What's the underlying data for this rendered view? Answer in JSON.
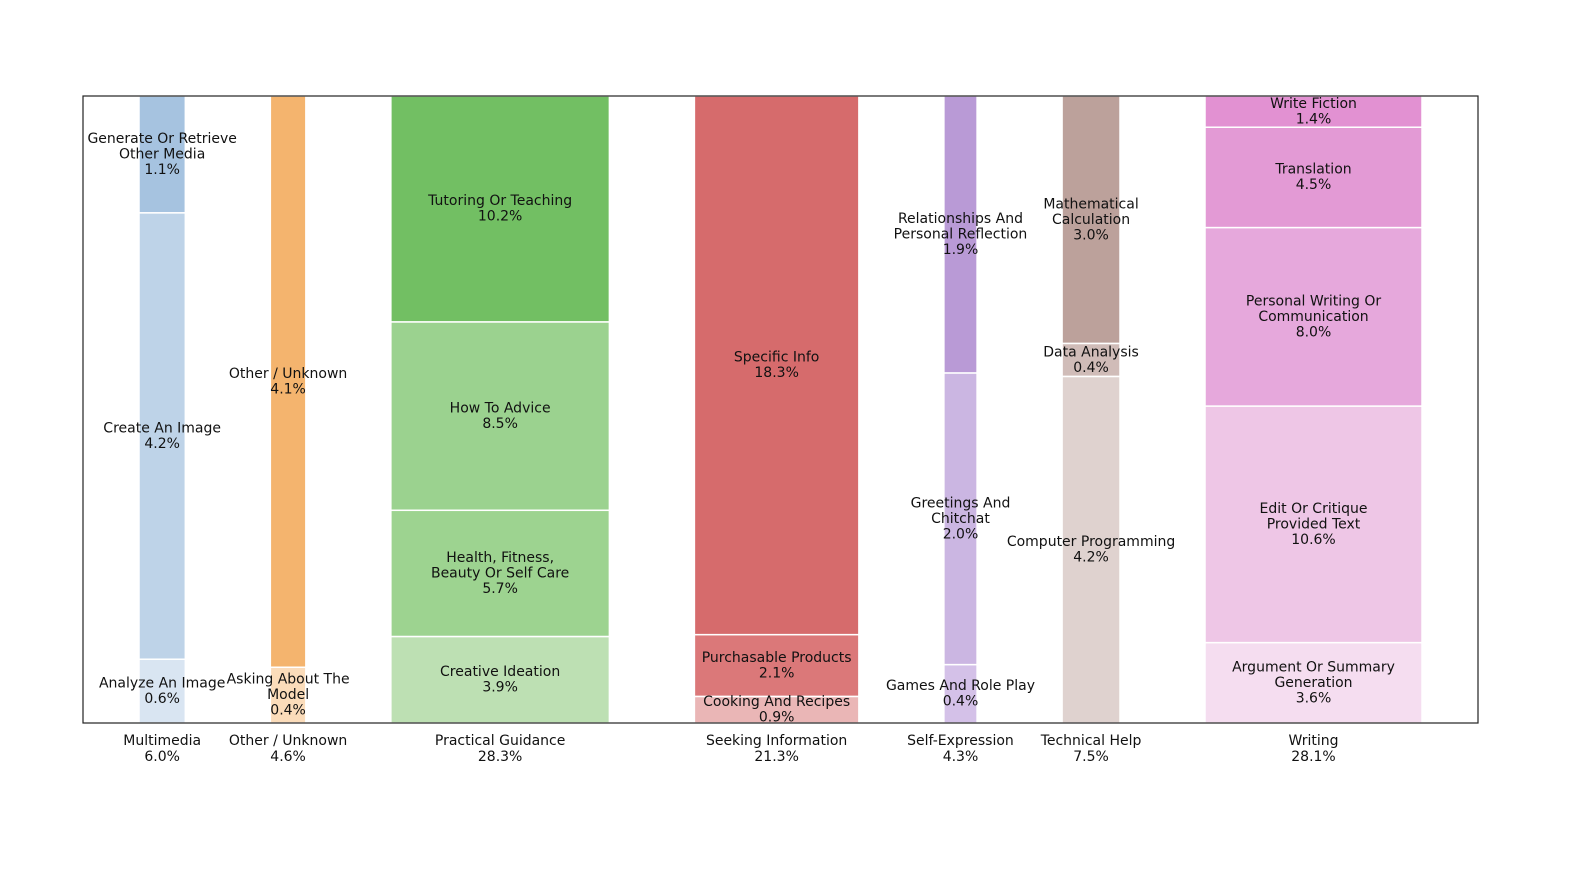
{
  "chart_data": {
    "type": "marimekko",
    "groups": [
      {
        "name": "Multimedia",
        "value": 6.0,
        "value_label": "6.0%",
        "segments": [
          {
            "name": "Generate Or Retrieve\nOther Media",
            "value": 1.1,
            "value_label": "1.1%",
            "color": "#a6c3e0"
          },
          {
            "name": "Create An Image",
            "value": 4.2,
            "value_label": "4.2%",
            "color": "#bed3e8"
          },
          {
            "name": "Analyze An Image",
            "value": 0.6,
            "value_label": "0.6%",
            "color": "#d9e5f2"
          }
        ]
      },
      {
        "name": "Other / Unknown",
        "value": 4.6,
        "value_label": "4.6%",
        "segments": [
          {
            "name": "Other / Unknown",
            "value": 4.1,
            "value_label": "4.1%",
            "color": "#f4b46e"
          },
          {
            "name": "Asking About The\nModel",
            "value": 0.4,
            "value_label": "0.4%",
            "color": "#fbdcba"
          }
        ]
      },
      {
        "name": "Practical Guidance",
        "value": 28.3,
        "value_label": "28.3%",
        "segments": [
          {
            "name": "Tutoring Or Teaching",
            "value": 10.2,
            "value_label": "10.2%",
            "color": "#72bf63"
          },
          {
            "name": "How To Advice",
            "value": 8.5,
            "value_label": "8.5%",
            "color": "#9bd28f"
          },
          {
            "name": "Health, Fitness,\nBeauty Or Self Care",
            "value": 5.7,
            "value_label": "5.7%",
            "color": "#9dd390"
          },
          {
            "name": "Creative Ideation",
            "value": 3.9,
            "value_label": "3.9%",
            "color": "#bde0b3"
          }
        ]
      },
      {
        "name": "Seeking Information",
        "value": 21.3,
        "value_label": "21.3%",
        "segments": [
          {
            "name": "Specific Info",
            "value": 18.3,
            "value_label": "18.3%",
            "color": "#d66b6c"
          },
          {
            "name": "Purchasable Products",
            "value": 2.1,
            "value_label": "2.1%",
            "color": "#db7879"
          },
          {
            "name": "Cooking And Recipes",
            "value": 0.9,
            "value_label": "0.9%",
            "color": "#eab6b6"
          }
        ]
      },
      {
        "name": "Self-Expression",
        "value": 4.3,
        "value_label": "4.3%",
        "segments": [
          {
            "name": "Relationships And\nPersonal Reflection",
            "value": 1.9,
            "value_label": "1.9%",
            "color": "#b99ad6"
          },
          {
            "name": "Greetings And\nChitchat",
            "value": 2.0,
            "value_label": "2.0%",
            "color": "#cbb6e2"
          },
          {
            "name": "Games And Role Play",
            "value": 0.4,
            "value_label": "0.4%",
            "color": "#d4c1e8"
          }
        ]
      },
      {
        "name": "Technical Help",
        "value": 7.5,
        "value_label": "7.5%",
        "segments": [
          {
            "name": "Mathematical\nCalculation",
            "value": 3.0,
            "value_label": "3.0%",
            "color": "#bca19b"
          },
          {
            "name": "Data Analysis",
            "value": 0.4,
            "value_label": "0.4%",
            "color": "#d0bcb8"
          },
          {
            "name": "Computer Programming",
            "value": 4.2,
            "value_label": "4.2%",
            "color": "#dfd2cf"
          }
        ]
      },
      {
        "name": "Writing",
        "value": 28.1,
        "value_label": "28.1%",
        "segments": [
          {
            "name": "Write Fiction",
            "value": 1.4,
            "value_label": "1.4%",
            "color": "#e291d2"
          },
          {
            "name": "Translation",
            "value": 4.5,
            "value_label": "4.5%",
            "color": "#e39ad5"
          },
          {
            "name": "Personal Writing Or\nCommunication",
            "value": 8.0,
            "value_label": "8.0%",
            "color": "#e6a8dc"
          },
          {
            "name": "Edit Or Critique\nProvided Text",
            "value": 10.6,
            "value_label": "10.6%",
            "color": "#eec6e6"
          },
          {
            "name": "Argument Or Summary\nGeneration",
            "value": 3.6,
            "value_label": "3.6%",
            "color": "#f5ddf0"
          }
        ]
      }
    ]
  }
}
